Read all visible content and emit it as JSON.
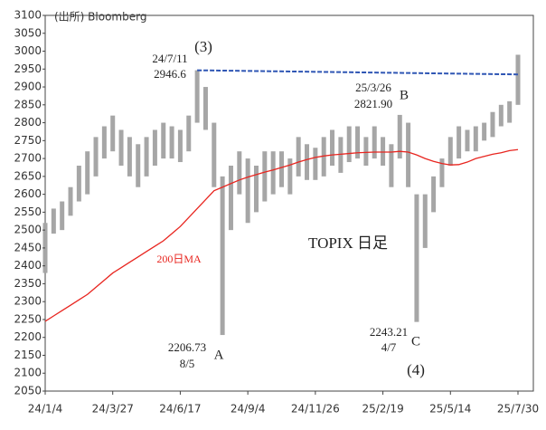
{
  "chart_data": {
    "type": "range",
    "source": "(出所) Bloomberg",
    "categories": [
      "24/1/4",
      null,
      null,
      null,
      null,
      null,
      null,
      null,
      "24/3/27",
      null,
      null,
      null,
      null,
      null,
      null,
      null,
      "24/6/17",
      null,
      null,
      null,
      null,
      null,
      null,
      null,
      "24/9/4",
      null,
      null,
      null,
      null,
      null,
      null,
      null,
      "24/11/26",
      null,
      null,
      null,
      null,
      null,
      null,
      null,
      "25/2/19",
      null,
      null,
      null,
      null,
      null,
      null,
      null,
      "25/5/14",
      null,
      null,
      null,
      null,
      null,
      null,
      null,
      "25/7/30"
    ],
    "high": [
      2520,
      2560,
      2580,
      2620,
      2680,
      2720,
      2760,
      2790,
      2820,
      2780,
      2760,
      2740,
      2760,
      2780,
      2800,
      2790,
      2780,
      2820,
      2946.6,
      2900,
      2800,
      2650,
      2680,
      2720,
      2700,
      2680,
      2720,
      2720,
      2720,
      2700,
      2760,
      2740,
      2730,
      2760,
      2780,
      2760,
      2790,
      2790,
      2760,
      2790,
      2760,
      2740,
      2821.9,
      2800,
      2600,
      2600,
      2650,
      2700,
      2760,
      2790,
      2780,
      2790,
      2800,
      2830,
      2850,
      2860,
      2990
    ],
    "low": [
      2380,
      2490,
      2500,
      2540,
      2580,
      2600,
      2650,
      2700,
      2720,
      2680,
      2650,
      2620,
      2650,
      2680,
      2700,
      2700,
      2690,
      2720,
      2800,
      2780,
      2620,
      2206.73,
      2500,
      2600,
      2520,
      2550,
      2580,
      2600,
      2620,
      2600,
      2650,
      2640,
      2640,
      2650,
      2680,
      2660,
      2690,
      2700,
      2680,
      2700,
      2680,
      2620,
      2700,
      2620,
      2243.21,
      2450,
      2550,
      2620,
      2680,
      2700,
      2720,
      2720,
      2750,
      2760,
      2790,
      2800,
      2850
    ],
    "color": "#a6a6a6",
    "ma": {
      "name": "200日MA",
      "color": "#e8251f",
      "values": [
        2245,
        2260,
        2275,
        2290,
        2305,
        2320,
        2340,
        2360,
        2380,
        2395,
        2410,
        2425,
        2440,
        2455,
        2470,
        2490,
        2510,
        2535,
        2560,
        2585,
        2610,
        2620,
        2630,
        2640,
        2648,
        2655,
        2662,
        2668,
        2675,
        2682,
        2690,
        2697,
        2703,
        2707,
        2710,
        2712,
        2714,
        2716,
        2717,
        2718,
        2718,
        2718,
        2720,
        2718,
        2710,
        2700,
        2692,
        2686,
        2682,
        2683,
        2690,
        2700,
        2706,
        2712,
        2716,
        2722,
        2725
      ]
    },
    "trendline": {
      "color": "#2f56b4",
      "x": [
        18,
        56
      ],
      "values": [
        2946.6,
        2935
      ]
    },
    "ylim": [
      2050,
      3100
    ],
    "yticks": [
      2050,
      2100,
      2150,
      2200,
      2250,
      2300,
      2350,
      2400,
      2450,
      2500,
      2550,
      2600,
      2650,
      2700,
      2750,
      2800,
      2850,
      2900,
      2950,
      3000,
      3050,
      3100
    ],
    "annotations": [
      "(3)",
      "24/7/11",
      "2946.6",
      "25/3/26",
      "B",
      "2821.90",
      "TOPIX 日足",
      "2206.73",
      "8/5",
      "A",
      "2243.21",
      "4/7",
      "C",
      "(4)"
    ]
  }
}
